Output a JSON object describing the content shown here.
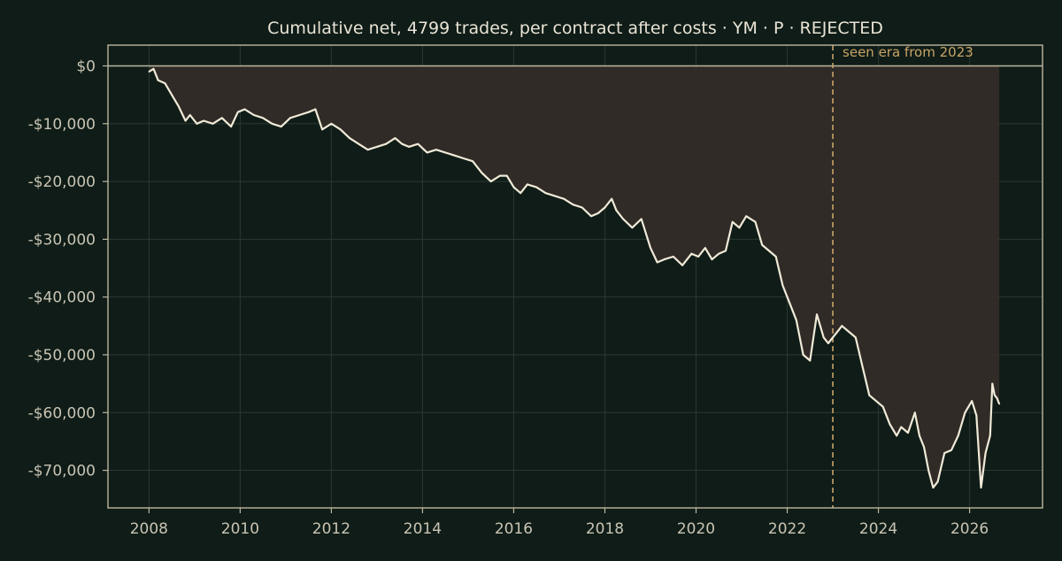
{
  "colors": {
    "background": "#0f1c17",
    "frame": "#bdb7a0",
    "grid": "#2c3832",
    "text": "#e9e4d6",
    "tick_text": "#c9c4b4",
    "line": "#f1ead9",
    "fill": "#332c27",
    "annotation": "#c9a468"
  },
  "chart_data": {
    "type": "line",
    "title": "Cumulative net, 4799 trades, per contract after costs  ·  YM · P · REJECTED",
    "xlabel": "",
    "ylabel": "",
    "x_unit": "year",
    "xlim": [
      2007.1,
      2027.6
    ],
    "ylim": [
      -76500,
      3600
    ],
    "x_ticks": [
      2008,
      2010,
      2012,
      2014,
      2016,
      2018,
      2020,
      2022,
      2024,
      2026
    ],
    "x_tick_labels": [
      "2008",
      "2010",
      "2012",
      "2014",
      "2016",
      "2018",
      "2020",
      "2022",
      "2024",
      "2026"
    ],
    "y_ticks": [
      0,
      -10000,
      -20000,
      -30000,
      -40000,
      -50000,
      -60000,
      -70000
    ],
    "y_tick_labels": [
      "$0",
      "-$10,000",
      "-$20,000",
      "-$30,000",
      "-$40,000",
      "-$50,000",
      "-$60,000",
      "-$70,000"
    ],
    "grid": true,
    "fill_to_zero": true,
    "reference_lines": [
      {
        "axis": "y",
        "value": 0,
        "style": "solid"
      },
      {
        "axis": "x",
        "value": 2023.0,
        "style": "dashed",
        "label": "seen era from 2023"
      }
    ],
    "series": [
      {
        "name": "",
        "x": [
          2008.0,
          2008.1,
          2008.2,
          2008.35,
          2008.5,
          2008.65,
          2008.8,
          2008.9,
          2009.05,
          2009.2,
          2009.4,
          2009.6,
          2009.8,
          2009.95,
          2010.1,
          2010.3,
          2010.5,
          2010.7,
          2010.9,
          2011.1,
          2011.3,
          2011.5,
          2011.65,
          2011.8,
          2012.0,
          2012.2,
          2012.4,
          2012.6,
          2012.8,
          2013.0,
          2013.2,
          2013.4,
          2013.55,
          2013.7,
          2013.9,
          2014.1,
          2014.3,
          2014.5,
          2014.7,
          2014.9,
          2015.1,
          2015.3,
          2015.5,
          2015.7,
          2015.85,
          2016.0,
          2016.15,
          2016.3,
          2016.5,
          2016.7,
          2016.9,
          2017.1,
          2017.3,
          2017.5,
          2017.7,
          2017.85,
          2018.0,
          2018.15,
          2018.25,
          2018.4,
          2018.6,
          2018.8,
          2019.0,
          2019.15,
          2019.3,
          2019.5,
          2019.7,
          2019.9,
          2020.05,
          2020.2,
          2020.35,
          2020.5,
          2020.65,
          2020.8,
          2020.95,
          2021.1,
          2021.3,
          2021.45,
          2021.6,
          2021.75,
          2021.9,
          2022.05,
          2022.2,
          2022.35,
          2022.5,
          2022.65,
          2022.8,
          2022.9,
          2023.0,
          2023.1,
          2023.2,
          2023.35,
          2023.5,
          2023.65,
          2023.8,
          2023.95,
          2024.1,
          2024.25,
          2024.4,
          2024.5,
          2024.65,
          2024.8,
          2024.9,
          2025.0,
          2025.1,
          2025.2,
          2025.3,
          2025.45,
          2025.6,
          2025.75,
          2025.9,
          2026.05,
          2026.15,
          2026.25,
          2026.35,
          2026.45,
          2026.5,
          2026.55,
          2026.6,
          2026.65
        ],
        "values": [
          -1000,
          -500,
          -2500,
          -3000,
          -5000,
          -7000,
          -9500,
          -8500,
          -10000,
          -9500,
          -10000,
          -9000,
          -10500,
          -8000,
          -7500,
          -8500,
          -9000,
          -10000,
          -10500,
          -9000,
          -8500,
          -8000,
          -7500,
          -11000,
          -10000,
          -11000,
          -12500,
          -13500,
          -14500,
          -14000,
          -13500,
          -12500,
          -13500,
          -14000,
          -13500,
          -15000,
          -14500,
          -15000,
          -15500,
          -16000,
          -16500,
          -18500,
          -20000,
          -19000,
          -19000,
          -21000,
          -22000,
          -20500,
          -21000,
          -22000,
          -22500,
          -23000,
          -24000,
          -24500,
          -26000,
          -25500,
          -24500,
          -23000,
          -25000,
          -26500,
          -28000,
          -26500,
          -31500,
          -34000,
          -33500,
          -33000,
          -34500,
          -32500,
          -33000,
          -31500,
          -33500,
          -32500,
          -32000,
          -27000,
          -28000,
          -26000,
          -27000,
          -31000,
          -32000,
          -33000,
          -38000,
          -41000,
          -44000,
          -50000,
          -51000,
          -43000,
          -47000,
          -48000,
          -47000,
          -46000,
          -45000,
          -46000,
          -47000,
          -52000,
          -57000,
          -58000,
          -59000,
          -62000,
          -64000,
          -62500,
          -63500,
          -60000,
          -64000,
          -66000,
          -70000,
          -73000,
          -72000,
          -67000,
          -66500,
          -64000,
          -60000,
          -58000,
          -60500,
          -73000,
          -67000,
          -64000,
          -55000,
          -57000,
          -57500,
          -58500
        ]
      }
    ]
  }
}
